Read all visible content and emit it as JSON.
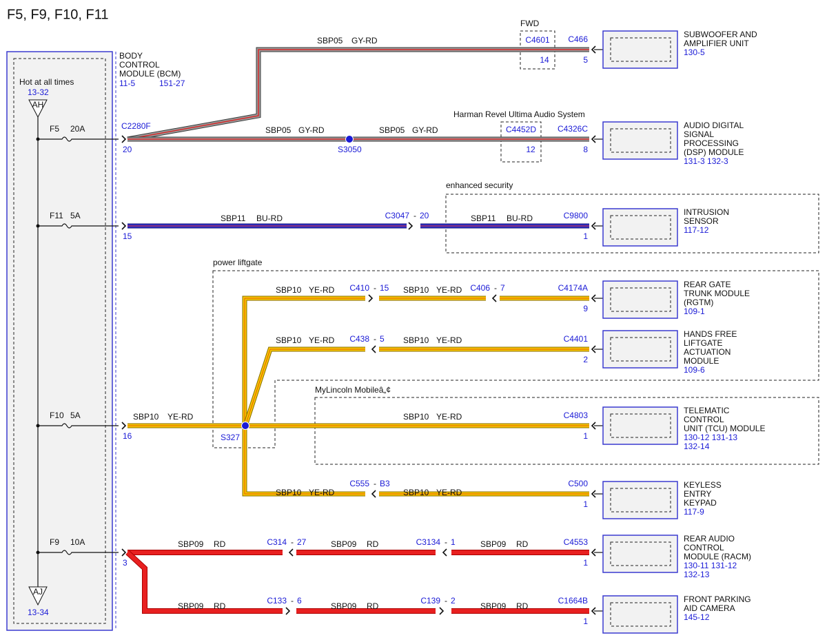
{
  "title": "F5, F9, F10, F11",
  "power": {
    "label": "Hot at all times",
    "ref_top": "13-32",
    "terminal_top": "AH",
    "terminal_bottom": "AJ",
    "ref_bottom": "13-34"
  },
  "fuses": [
    {
      "name": "F5",
      "rating": "20A"
    },
    {
      "name": "F11",
      "rating": "5A"
    },
    {
      "name": "F10",
      "rating": "5A"
    },
    {
      "name": "F9",
      "rating": "10A"
    }
  ],
  "bcm": {
    "lines": [
      "BODY",
      "CONTROL",
      "MODULE (BCM)"
    ],
    "refs": [
      "11-5",
      "151-27"
    ],
    "connector": "C2280F",
    "pins": [
      "20",
      "15",
      "16",
      "3"
    ]
  },
  "options": [
    "FWD",
    "Harman Revel Ultima Audio System",
    "enhanced security",
    "power liftgate",
    "MyLincoln Mobileâ„¢"
  ],
  "splices": [
    "S3050",
    "S327"
  ],
  "separator": "-",
  "wire_labels": [
    {
      "circuit": "SBP05",
      "color": "GY-RD"
    },
    {
      "circuit": "SBP05",
      "color": "GY-RD"
    },
    {
      "circuit": "SBP05",
      "color": "GY-RD"
    },
    {
      "circuit": "SBP11",
      "color": "BU-RD"
    },
    {
      "circuit": "SBP11",
      "color": "BU-RD"
    },
    {
      "circuit": "SBP10",
      "color": "YE-RD"
    },
    {
      "circuit": "SBP10",
      "color": "YE-RD"
    },
    {
      "circuit": "SBP10",
      "color": "YE-RD"
    },
    {
      "circuit": "SBP10",
      "color": "YE-RD"
    },
    {
      "circuit": "SBP10",
      "color": "YE-RD"
    },
    {
      "circuit": "SBP10",
      "color": "YE-RD"
    },
    {
      "circuit": "SBP10",
      "color": "YE-RD"
    },
    {
      "circuit": "SBP10",
      "color": "YE-RD"
    },
    {
      "circuit": "SBP09",
      "color": "RD"
    },
    {
      "circuit": "SBP09",
      "color": "RD"
    },
    {
      "circuit": "SBP09",
      "color": "RD"
    },
    {
      "circuit": "SBP09",
      "color": "RD"
    },
    {
      "circuit": "SBP09",
      "color": "RD"
    },
    {
      "circuit": "SBP09",
      "color": "RD"
    }
  ],
  "connectors": [
    {
      "id": "C4601",
      "pin": "14"
    },
    {
      "id": "C4452D",
      "pin": "12"
    },
    {
      "id": "C3047",
      "pin": "20"
    },
    {
      "id": "C410",
      "pin": "15"
    },
    {
      "id": "C406",
      "pin": "7"
    },
    {
      "id": "C438",
      "pin": "5"
    },
    {
      "id": "C555",
      "pin": "B3"
    },
    {
      "id": "C314",
      "pin": "27"
    },
    {
      "id": "C3134",
      "pin": "1"
    },
    {
      "id": "C133",
      "pin": "6"
    },
    {
      "id": "C139",
      "pin": "2"
    }
  ],
  "modules": [
    {
      "connector": "C466",
      "pin": "5",
      "lines": [
        "SUBWOOFER AND",
        "AMPLIFIER UNIT"
      ],
      "refs": [
        "130-5"
      ]
    },
    {
      "connector": "C4326C",
      "pin": "8",
      "lines": [
        "AUDIO DIGITAL",
        "SIGNAL",
        "PROCESSING",
        "(DSP) MODULE"
      ],
      "refs": [
        "131-3  132-3"
      ]
    },
    {
      "connector": "C9800",
      "pin": "1",
      "lines": [
        "INTRUSION",
        "SENSOR"
      ],
      "refs": [
        "117-12"
      ]
    },
    {
      "connector": "C4174A",
      "pin": "9",
      "lines": [
        "REAR GATE",
        "TRUNK MODULE",
        "(RGTM)"
      ],
      "refs": [
        "109-1"
      ]
    },
    {
      "connector": "C4401",
      "pin": "2",
      "lines": [
        "HANDS FREE",
        "LIFTGATE",
        "ACTUATION",
        "MODULE"
      ],
      "refs": [
        "109-6"
      ]
    },
    {
      "connector": "C4803",
      "pin": "1",
      "lines": [
        "TELEMATIC",
        "CONTROL",
        "UNIT (TCU) MODULE"
      ],
      "refs": [
        "130-12  131-13",
        "132-14"
      ]
    },
    {
      "connector": "C500",
      "pin": "1",
      "lines": [
        "KEYLESS",
        "ENTRY",
        "KEYPAD"
      ],
      "refs": [
        "117-9"
      ]
    },
    {
      "connector": "C4553",
      "pin": "1",
      "lines": [
        "REAR AUDIO",
        "CONTROL",
        "MODULE (RACM)"
      ],
      "refs": [
        "130-11  131-12",
        "132-13"
      ]
    },
    {
      "connector": "C1664B",
      "pin": "1",
      "lines": [
        "FRONT PARKING",
        "AID CAMERA"
      ],
      "refs": [
        "145-12"
      ]
    }
  ]
}
